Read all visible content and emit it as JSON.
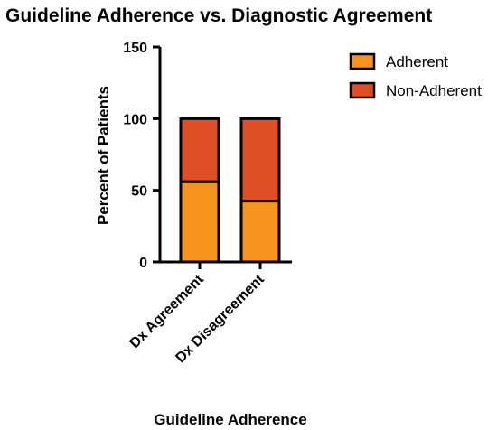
{
  "chart_data": {
    "type": "bar",
    "stacked": true,
    "title": "Guideline Adherence vs. Diagnostic Agreement",
    "xlabel": "Guideline Adherence",
    "ylabel": "Percent of Patients",
    "ylim": [
      0,
      150
    ],
    "yticks": [
      0,
      50,
      100,
      150
    ],
    "categories": [
      "Dx Agreement",
      "Dx Disagreement"
    ],
    "series": [
      {
        "name": "Adherent",
        "values": [
          56,
          42.5
        ],
        "color": "#F7941D"
      },
      {
        "name": "Non-Adherent",
        "values": [
          44,
          57.5
        ],
        "color": "#E04E25"
      }
    ],
    "legend_position": "top-right",
    "grid": false
  }
}
